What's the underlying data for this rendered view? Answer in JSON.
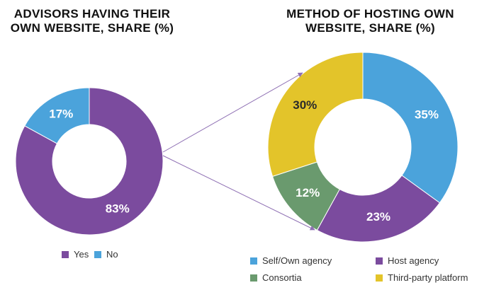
{
  "chart_data": [
    {
      "type": "pie",
      "style": "donut",
      "title": "ADVISORS HAVING THEIR OWN WEBSITE, SHARE (%)",
      "categories": [
        "Yes",
        "No"
      ],
      "values": [
        83,
        17
      ],
      "labels": [
        "83%",
        "17%"
      ],
      "colors": [
        "#7B4B9E",
        "#4BA3DB"
      ],
      "legend_position": "bottom"
    },
    {
      "type": "pie",
      "style": "donut",
      "title": "METHOD OF HOSTING OWN WEBSITE, SHARE (%)",
      "categories": [
        "Self/Own agency",
        "Host agency",
        "Consortia",
        "Third-party platform"
      ],
      "values": [
        35,
        23,
        12,
        30
      ],
      "labels": [
        "35%",
        "23%",
        "12%",
        "30%"
      ],
      "colors": [
        "#4BA3DB",
        "#7B4B9E",
        "#6A9A6E",
        "#E3C42A"
      ],
      "label_colors": [
        "#ffffff",
        "#ffffff",
        "#ffffff",
        "#2b2b2b"
      ],
      "legend_position": "bottom"
    }
  ],
  "connector_color": "#8E6FB3"
}
